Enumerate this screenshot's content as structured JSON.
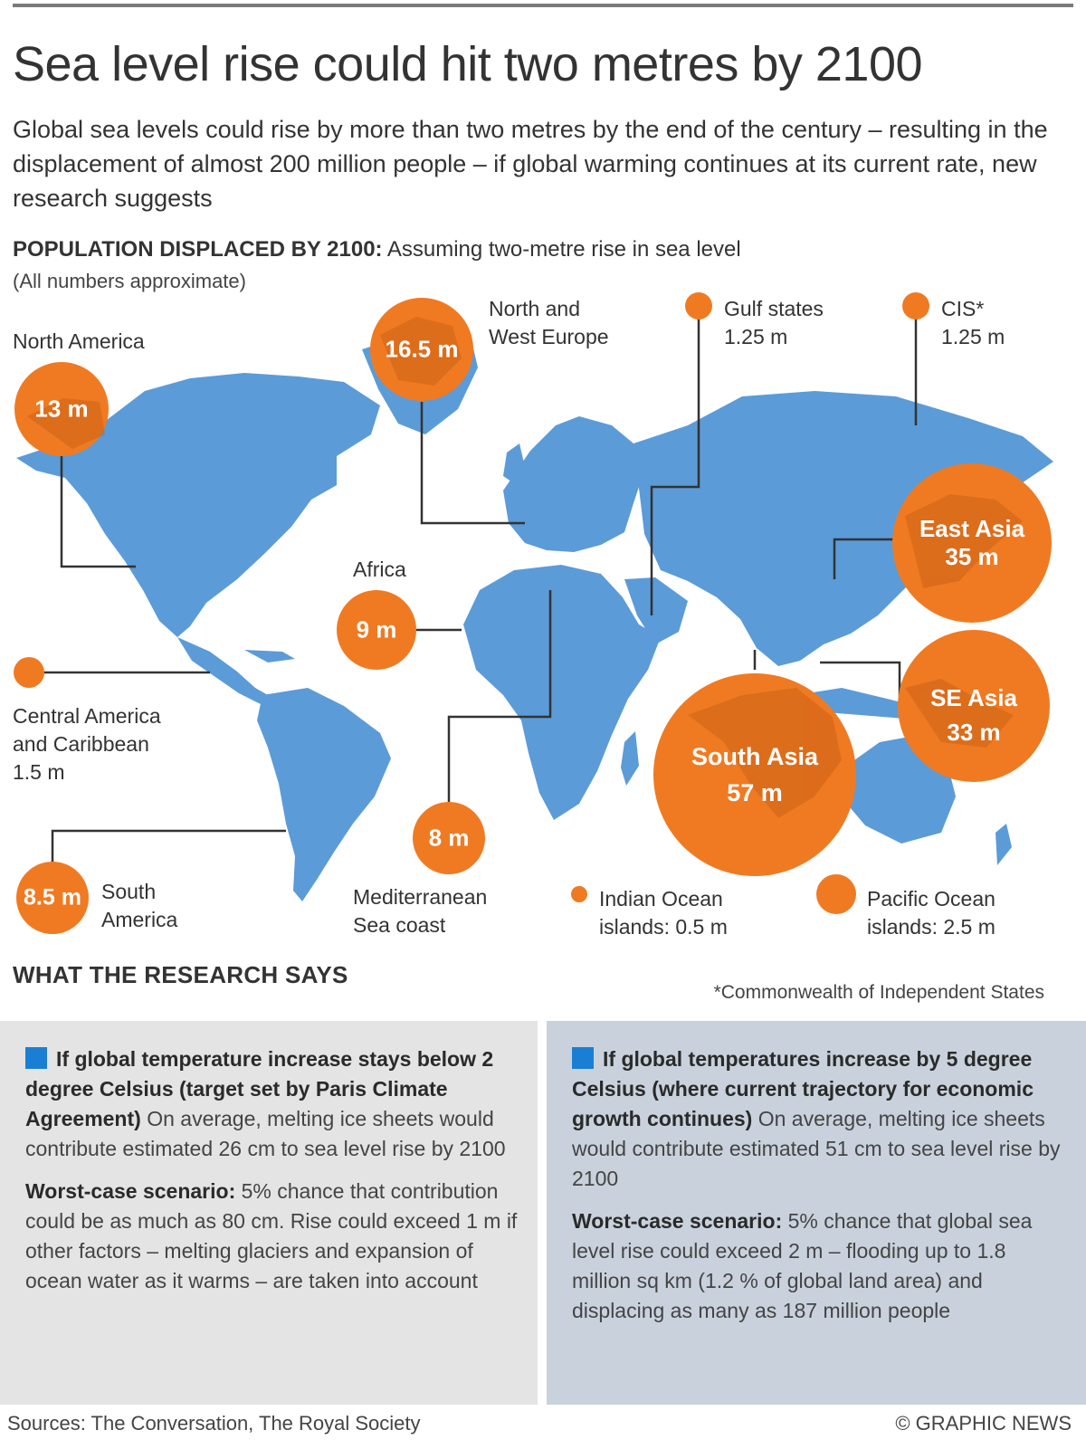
{
  "header": {
    "title": "Sea level rise could hit two metres by 2100",
    "subtitle": "Global sea levels could rise by more than two metres by the end of the century – resulting in the displacement of almost 200 million people – if global warming continues at its current rate, new research suggests"
  },
  "map_section": {
    "heading_bold": "POPULATION DISPLACED BY 2100:",
    "heading_rest": " Assuming two-metre rise in sea level",
    "note": "(All numbers approximate)"
  },
  "regions": {
    "north_america": {
      "name": "North America",
      "value": "13 m"
    },
    "europe": {
      "name_line1": "North and",
      "name_line2": "West Europe",
      "value": "16.5 m"
    },
    "gulf": {
      "name": "Gulf states",
      "value": "1.25 m"
    },
    "cis": {
      "name": "CIS*",
      "value": "1.25 m"
    },
    "africa": {
      "name": "Africa",
      "value": "9 m"
    },
    "east_asia": {
      "name": "East Asia",
      "value": "35 m"
    },
    "central_america": {
      "name_line1": "Central America",
      "name_line2": "and Caribbean",
      "value": "1.5 m"
    },
    "se_asia": {
      "name": "SE Asia",
      "value": "33 m"
    },
    "south_asia": {
      "name": "South Asia",
      "value": "57 m"
    },
    "mediterranean": {
      "name_line1": "Mediterranean",
      "name_line2": "Sea coast",
      "value": "8 m"
    },
    "south_america": {
      "name_line1": "South",
      "name_line2": "America",
      "value": "8.5 m"
    },
    "indian_ocean": {
      "name_line1": "Indian Ocean",
      "name_line2": "islands: 0.5 m"
    },
    "pacific_ocean": {
      "name_line1": "Pacific Ocean",
      "name_line2": "islands: 2.5 m"
    }
  },
  "research": {
    "heading": "WHAT THE RESEARCH SAYS",
    "cis_note": "*Commonwealth of Independent States",
    "left": {
      "bold": "If global temperature increase stays below 2 degree Celsius (target set by Paris Climate Agreement)",
      "text": " On average, melting ice sheets would contribute estimated 26 cm to sea level rise by 2100",
      "worst_bold": "Worst-case scenario:",
      "worst_text": " 5% chance that contribution could be as much as 80 cm. Rise could exceed 1 m if other factors – melting glaciers and expansion of ocean water as it warms – are taken into account"
    },
    "right": {
      "bold": "If global temperatures increase by 5 degree Celsius (where current trajectory for economic growth continues)",
      "text": " On average, melting ice sheets would contribute estimated 51 cm to sea level rise by 2100",
      "worst_bold": "Worst-case scenario:",
      "worst_text": "  5% chance that global sea level rise could exceed 2 m – flooding up to 1.8 million sq km (1.2 % of global land area) and displacing as many as 187 million people"
    }
  },
  "footer": {
    "sources": "Sources: The Conversation, The Royal Society",
    "credit": "© GRAPHIC NEWS"
  },
  "colors": {
    "land": "#5b9bd8",
    "bubble": "#f07a22",
    "bullet": "#1a7fd4",
    "box_left": "#e4e4e4",
    "box_right": "#c9d2dc"
  }
}
